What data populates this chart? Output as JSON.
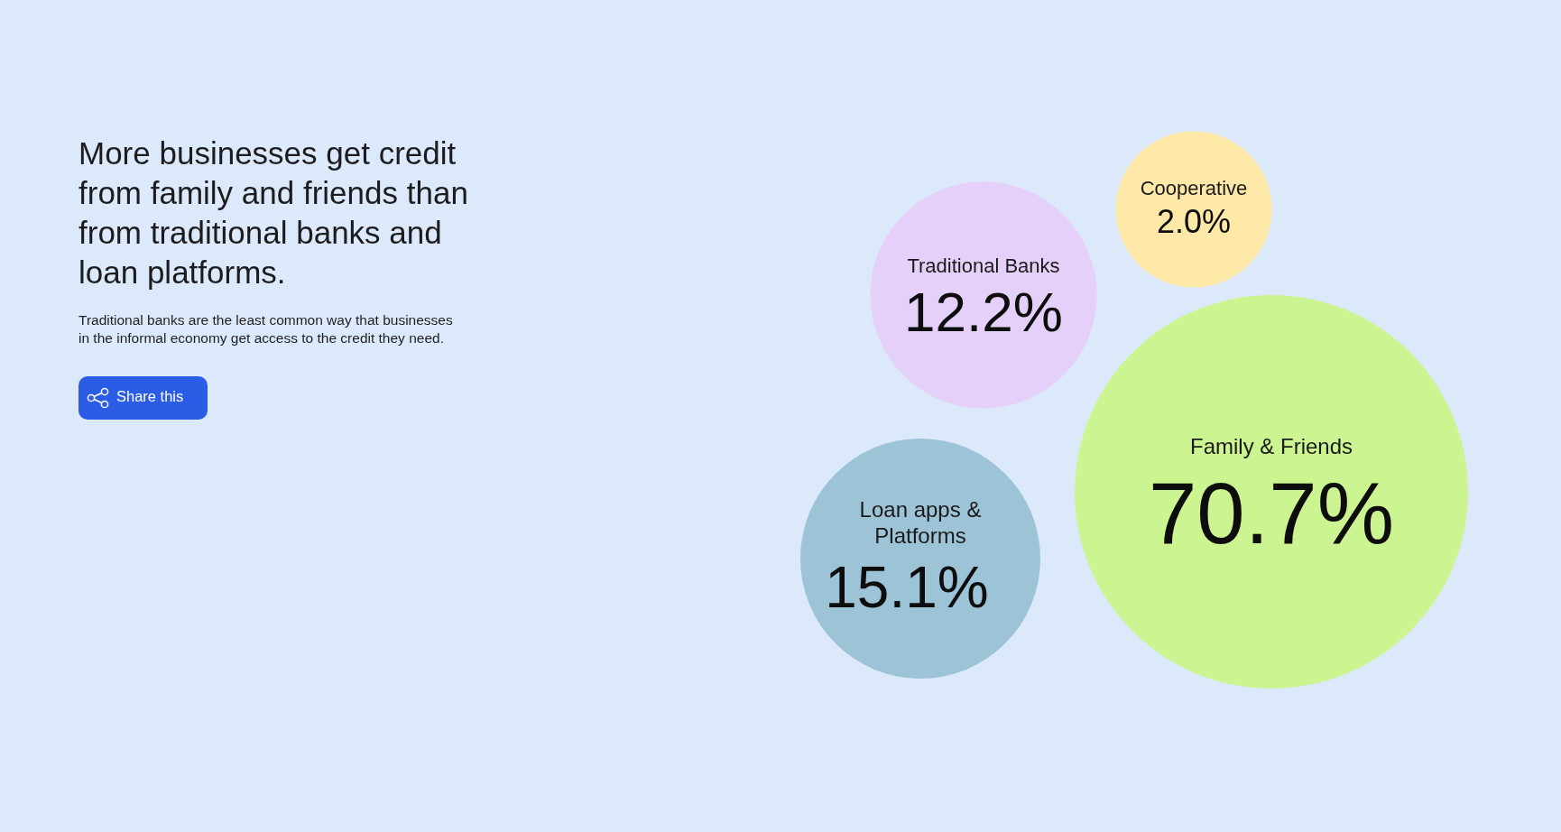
{
  "chart_data": {
    "type": "other",
    "title": "More businesses get credit from family and friends than from traditional banks and loan platforms.",
    "subtitle": "Traditional banks are the least common way that businesses in the informal economy get access to the credit they need.",
    "categories": [
      "Traditional Banks",
      "Cooperative",
      "Loan apps & Platforms",
      "Family & Friends"
    ],
    "values": [
      12.2,
      2.0,
      15.1,
      70.7
    ],
    "value_labels": [
      "12.2%",
      "2.0%",
      "15.1%",
      "70.7%"
    ],
    "colors": [
      "#e5d0fa",
      "#fde8a8",
      "#9dc3d6",
      "#ccf490"
    ],
    "annotations": [
      "Share this"
    ]
  }
}
